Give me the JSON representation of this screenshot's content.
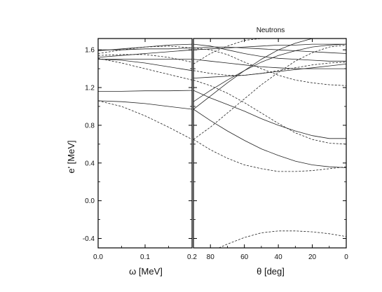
{
  "chart_data": [
    {
      "type": "line",
      "panel": "left",
      "title": "",
      "xlabel": "ω [MeV]",
      "ylabel": "e' [MeV]",
      "xlim": [
        0,
        0.2
      ],
      "ylim": [
        -0.5,
        1.72
      ],
      "x_ticks": [
        "0.0",
        "0.1",
        "0.2"
      ],
      "x_tick_values": [
        0,
        0.1,
        0.2
      ],
      "y_ticks": [
        "-0.4",
        "0.0",
        "0.4",
        "0.8",
        "1.2",
        "1.6"
      ],
      "y_tick_values": [
        -0.4,
        0,
        0.4,
        0.8,
        1.2,
        1.6
      ],
      "grid": false,
      "series": [
        {
          "style": "solid",
          "x": [
            0,
            0.05,
            0.1,
            0.15,
            0.2
          ],
          "y": [
            1.16,
            1.16,
            1.165,
            1.165,
            1.17
          ]
        },
        {
          "style": "solid",
          "x": [
            0,
            0.05,
            0.1,
            0.15,
            0.2
          ],
          "y": [
            1.06,
            1.05,
            1.03,
            1.0,
            0.97
          ]
        },
        {
          "style": "dashed",
          "x": [
            0,
            0.05,
            0.1,
            0.15,
            0.2
          ],
          "y": [
            1.06,
            1.0,
            0.9,
            0.78,
            0.65
          ]
        },
        {
          "style": "solid",
          "x": [
            0,
            0.05,
            0.1,
            0.15,
            0.2
          ],
          "y": [
            1.5,
            1.49,
            1.46,
            1.42,
            1.38
          ]
        },
        {
          "style": "solid",
          "x": [
            0,
            0.05,
            0.1,
            0.15,
            0.2
          ],
          "y": [
            1.5,
            1.5,
            1.5,
            1.5,
            1.5
          ]
        },
        {
          "style": "dashed",
          "x": [
            0,
            0.05,
            0.1,
            0.15,
            0.2
          ],
          "y": [
            1.51,
            1.46,
            1.4,
            1.34,
            1.28
          ]
        },
        {
          "style": "solid",
          "x": [
            0,
            0.05,
            0.1,
            0.15,
            0.2
          ],
          "y": [
            1.52,
            1.54,
            1.56,
            1.58,
            1.6
          ]
        },
        {
          "style": "dashed",
          "x": [
            0,
            0.05,
            0.1,
            0.15,
            0.2
          ],
          "y": [
            1.54,
            1.55,
            1.55,
            1.52,
            1.47
          ]
        },
        {
          "style": "dashed",
          "x": [
            0,
            0.05,
            0.1,
            0.15,
            0.2
          ],
          "y": [
            1.56,
            1.6,
            1.63,
            1.64,
            1.62
          ]
        },
        {
          "style": "solid",
          "x": [
            0,
            0.05,
            0.1,
            0.15,
            0.2
          ],
          "y": [
            1.59,
            1.61,
            1.63,
            1.65,
            1.66
          ]
        },
        {
          "style": "solid",
          "x": [
            0,
            0.05,
            0.1,
            0.15,
            0.2
          ],
          "y": [
            1.6,
            1.6,
            1.61,
            1.61,
            1.62
          ]
        }
      ]
    },
    {
      "type": "line",
      "panel": "right",
      "title": "Neutrons",
      "xlabel": "θ [deg]",
      "ylabel": "",
      "xlim": [
        90,
        0
      ],
      "ylim": [
        -0.5,
        1.72
      ],
      "x_ticks": [
        "80",
        "60",
        "40",
        "20",
        "0"
      ],
      "x_tick_values": [
        80,
        60,
        40,
        20,
        0
      ],
      "y_ticks": [],
      "grid": false,
      "series": [
        {
          "style": "dashed",
          "x": [
            75,
            70,
            60,
            50,
            40,
            30,
            20,
            10,
            0
          ],
          "y": [
            -0.5,
            -0.46,
            -0.39,
            -0.34,
            -0.32,
            -0.32,
            -0.33,
            -0.35,
            -0.38
          ]
        },
        {
          "style": "solid",
          "x": [
            90,
            80,
            70,
            60,
            50,
            40,
            30,
            20,
            10,
            0
          ],
          "y": [
            0.97,
            0.85,
            0.74,
            0.64,
            0.55,
            0.48,
            0.42,
            0.38,
            0.36,
            0.35
          ]
        },
        {
          "style": "dashed",
          "x": [
            90,
            80,
            70,
            60,
            50,
            40,
            30,
            20,
            10,
            0
          ],
          "y": [
            0.65,
            0.54,
            0.45,
            0.38,
            0.34,
            0.31,
            0.31,
            0.32,
            0.34,
            0.36
          ]
        },
        {
          "style": "solid",
          "x": [
            90,
            80,
            70,
            60,
            50,
            40,
            30,
            20,
            10,
            0
          ],
          "y": [
            1.17,
            1.09,
            1.02,
            0.95,
            0.87,
            0.8,
            0.74,
            0.69,
            0.66,
            0.66
          ]
        },
        {
          "style": "dashed",
          "x": [
            90,
            80,
            70,
            60,
            50,
            40,
            30,
            20,
            10,
            0
          ],
          "y": [
            1.28,
            1.22,
            1.14,
            1.04,
            0.93,
            0.82,
            0.72,
            0.65,
            0.61,
            0.6
          ]
        },
        {
          "style": "solid",
          "x": [
            90,
            80,
            70,
            60,
            50,
            40,
            30,
            20,
            10,
            0
          ],
          "y": [
            0.97,
            1.11,
            1.25,
            1.38,
            1.5,
            1.6,
            1.67,
            1.72,
            1.72,
            1.72
          ]
        },
        {
          "style": "solid",
          "x": [
            90,
            80,
            70,
            60,
            50,
            40,
            30,
            20,
            10,
            0
          ],
          "y": [
            1.05,
            1.17,
            1.28,
            1.38,
            1.47,
            1.54,
            1.59,
            1.63,
            1.65,
            1.66
          ]
        },
        {
          "style": "dashed",
          "x": [
            90,
            80,
            70,
            60,
            50,
            40,
            30,
            20,
            10,
            0
          ],
          "y": [
            0.65,
            0.78,
            0.93,
            1.08,
            1.23,
            1.36,
            1.48,
            1.57,
            1.63,
            1.65
          ]
        },
        {
          "style": "dashed",
          "x": [
            90,
            80,
            70,
            60,
            50,
            40,
            30,
            20,
            10,
            0
          ],
          "y": [
            1.62,
            1.6,
            1.55,
            1.47,
            1.4,
            1.33,
            1.28,
            1.25,
            1.23,
            1.22
          ]
        },
        {
          "style": "solid",
          "x": [
            90,
            80,
            70,
            60,
            50,
            40,
            30,
            20,
            10,
            0
          ],
          "y": [
            1.5,
            1.48,
            1.46,
            1.44,
            1.42,
            1.41,
            1.4,
            1.4,
            1.4,
            1.4
          ]
        },
        {
          "style": "solid",
          "x": [
            90,
            80,
            70,
            60,
            50,
            40,
            30,
            20,
            10,
            0
          ],
          "y": [
            1.3,
            1.31,
            1.32,
            1.33,
            1.35,
            1.37,
            1.39,
            1.41,
            1.43,
            1.45
          ]
        },
        {
          "style": "dashed",
          "x": [
            90,
            80,
            70,
            60,
            50,
            40,
            30,
            20,
            10,
            0
          ],
          "y": [
            1.38,
            1.35,
            1.33,
            1.33,
            1.35,
            1.38,
            1.41,
            1.44,
            1.46,
            1.47
          ]
        },
        {
          "style": "solid",
          "x": [
            90,
            80,
            70,
            60,
            50,
            40,
            30,
            20,
            10,
            0
          ],
          "y": [
            1.6,
            1.61,
            1.62,
            1.63,
            1.64,
            1.65,
            1.65,
            1.66,
            1.66,
            1.66
          ]
        },
        {
          "style": "solid",
          "x": [
            90,
            80,
            70,
            60,
            50,
            40,
            30,
            20,
            10,
            0
          ],
          "y": [
            1.62,
            1.63,
            1.63,
            1.62,
            1.61,
            1.6,
            1.59,
            1.58,
            1.57,
            1.56
          ]
        },
        {
          "style": "dashed",
          "x": [
            90,
            80,
            70,
            60,
            50,
            40,
            30,
            20,
            10,
            0
          ],
          "y": [
            1.45,
            1.56,
            1.64,
            1.7,
            1.72,
            1.72,
            1.72,
            1.72,
            1.72,
            1.72
          ]
        },
        {
          "style": "solid",
          "x": [
            90,
            80,
            70,
            60,
            50,
            40,
            30,
            20,
            10,
            0
          ],
          "y": [
            1.66,
            1.64,
            1.6,
            1.56,
            1.53,
            1.51,
            1.5,
            1.49,
            1.48,
            1.48
          ]
        }
      ]
    }
  ]
}
